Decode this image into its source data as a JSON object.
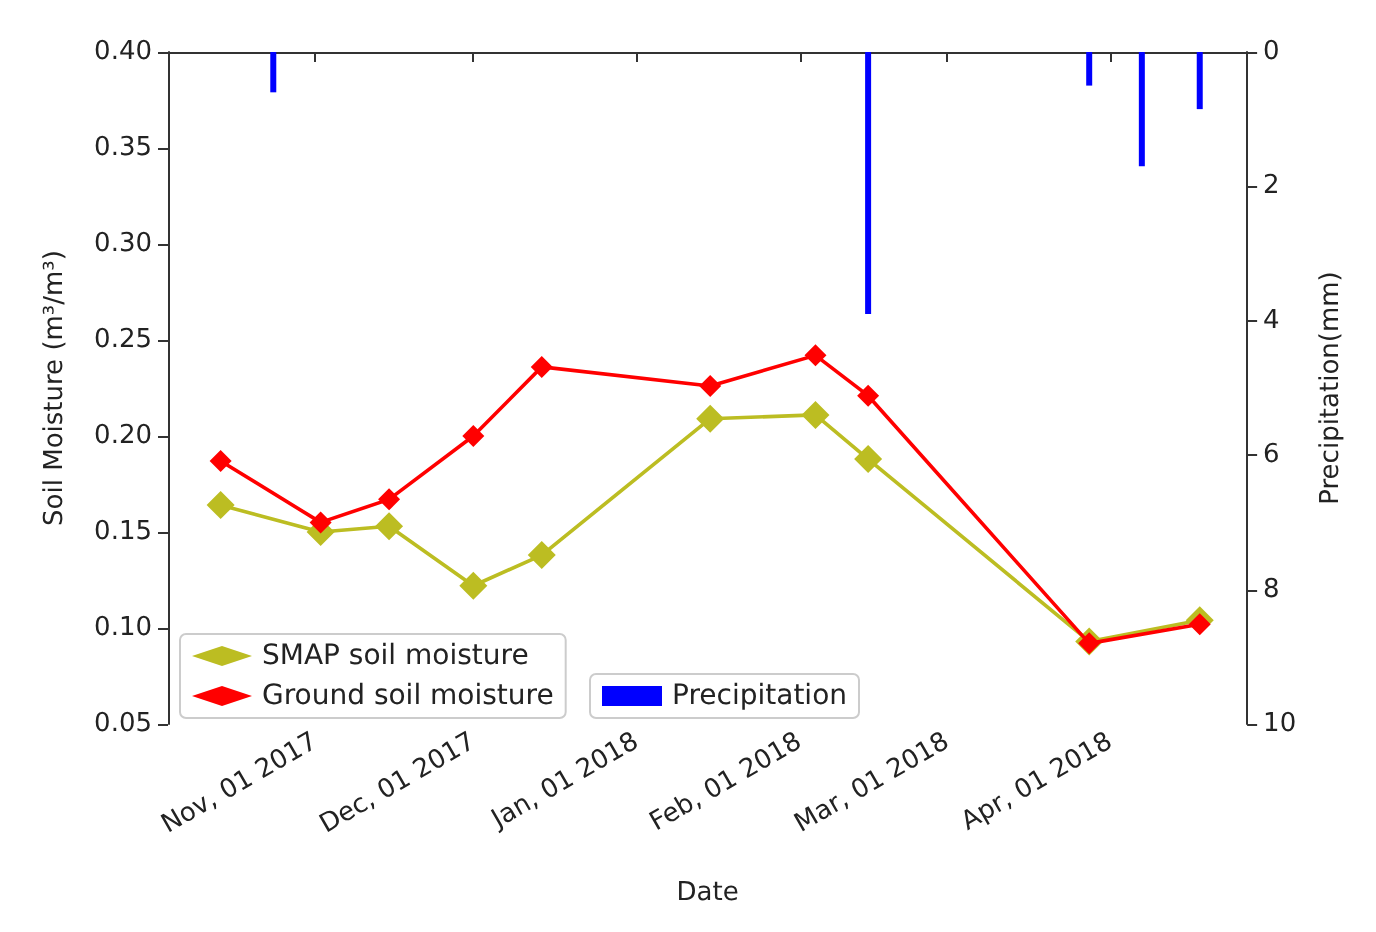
{
  "chart_data": {
    "type": "line",
    "xlabel": "Date",
    "ylabel": "Soil Moisture (m³/m³)",
    "y2label": "Precipitation(mm)",
    "x": [
      "2017-10-14",
      "2017-11-02",
      "2017-11-15",
      "2017-12-01",
      "2017-12-14",
      "2018-01-15",
      "2018-02-04",
      "2018-02-14",
      "2018-03-28",
      "2018-04-18"
    ],
    "series": [
      {
        "name": "SMAP soil moisture",
        "color": "#bcbd22",
        "values": [
          0.164,
          0.15,
          0.153,
          0.122,
          0.138,
          0.209,
          0.211,
          0.188,
          0.093,
          0.104
        ]
      },
      {
        "name": "Ground soil moisture",
        "color": "#ff0000",
        "values": [
          0.187,
          0.155,
          0.167,
          0.2,
          0.236,
          0.226,
          0.242,
          0.221,
          0.092,
          0.102
        ]
      },
      {
        "name": "Precipitation",
        "type": "bar",
        "axis": "y2",
        "color": "#0000ff",
        "x": [
          "2017-10-24",
          "2018-02-14",
          "2018-03-28",
          "2018-04-07",
          "2018-04-18"
        ],
        "values": [
          0.6,
          3.9,
          0.5,
          1.7,
          0.85
        ]
      }
    ],
    "xlim": [
      "2017-10-04",
      "2018-04-27"
    ],
    "xticks": [
      {
        "value": "2017-11-01",
        "label": "Nov, 01 2017"
      },
      {
        "value": "2017-12-01",
        "label": "Dec, 01 2017"
      },
      {
        "value": "2018-01-01",
        "label": "Jan, 01 2018"
      },
      {
        "value": "2018-02-01",
        "label": "Feb, 01 2018"
      },
      {
        "value": "2018-03-01",
        "label": "Mar, 01 2018"
      },
      {
        "value": "2018-04-01",
        "label": "Apr, 01 2018"
      }
    ],
    "ylim": [
      0.05,
      0.4
    ],
    "yticks": [
      {
        "value": 0.05,
        "label": "0.05"
      },
      {
        "value": 0.1,
        "label": "0.10"
      },
      {
        "value": 0.15,
        "label": "0.15"
      },
      {
        "value": 0.2,
        "label": "0.20"
      },
      {
        "value": 0.25,
        "label": "0.25"
      },
      {
        "value": 0.3,
        "label": "0.30"
      },
      {
        "value": 0.35,
        "label": "0.35"
      },
      {
        "value": 0.4,
        "label": "0.40"
      }
    ],
    "y2lim": [
      10,
      0
    ],
    "y2ticks": [
      0,
      2,
      4,
      6,
      8,
      10
    ],
    "marker": "diamond",
    "grid": false,
    "legend": "bottom left"
  }
}
